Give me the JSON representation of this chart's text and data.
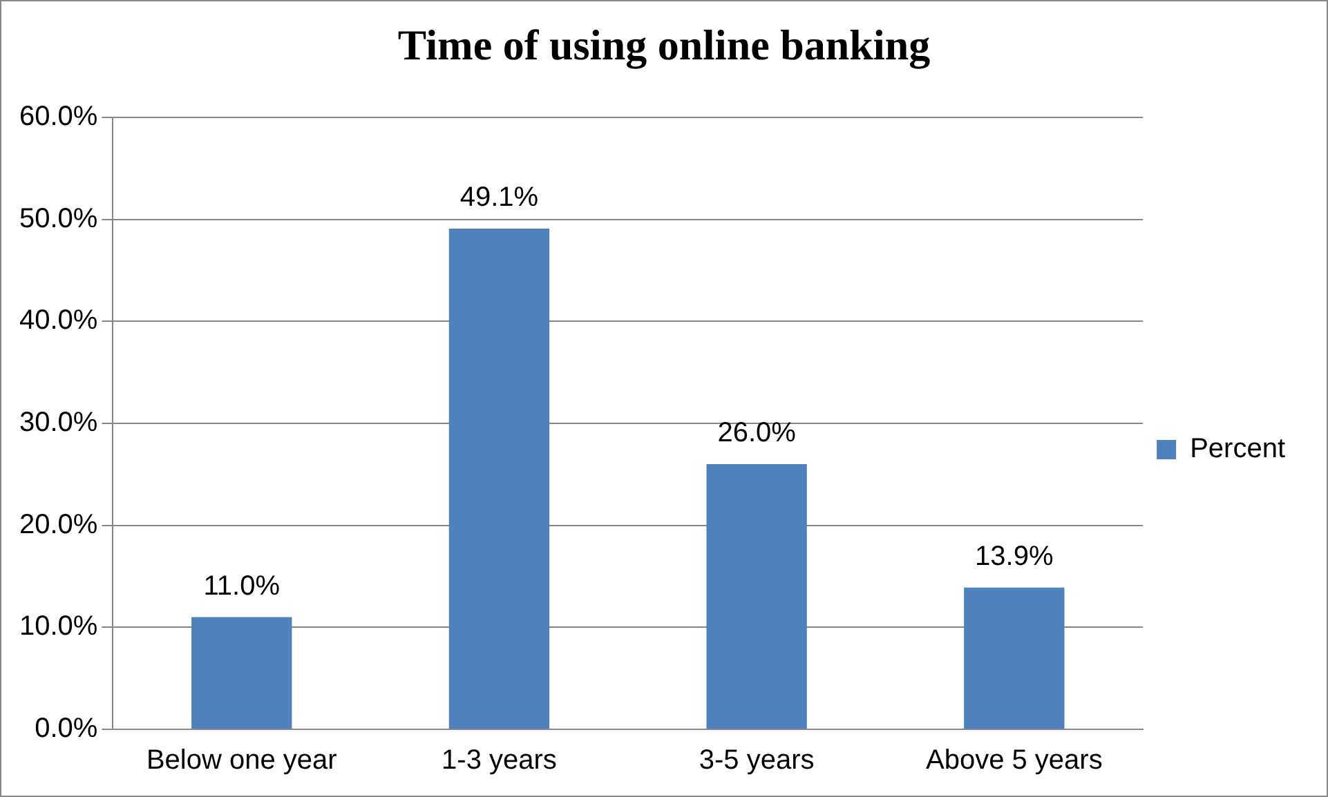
{
  "chart_data": {
    "type": "bar",
    "title": "Time of using online banking",
    "categories": [
      "Below one year",
      "1-3 years",
      "3-5 years",
      "Above 5 years"
    ],
    "series": [
      {
        "name": "Percent",
        "color": "#4f81bd",
        "values": [
          11.0,
          49.1,
          26.0,
          13.9
        ],
        "value_labels": [
          "11.0%",
          "49.1%",
          "26.0%",
          "13.9%"
        ]
      }
    ],
    "ylim": [
      0,
      60
    ],
    "yticks": [
      {
        "value": 0,
        "label": "0.0%"
      },
      {
        "value": 10,
        "label": "10.0%"
      },
      {
        "value": 20,
        "label": "20.0%"
      },
      {
        "value": 30,
        "label": "30.0%"
      },
      {
        "value": 40,
        "label": "40.0%"
      },
      {
        "value": 50,
        "label": "50.0%"
      },
      {
        "value": 60,
        "label": "60.0%"
      }
    ],
    "grid": "y",
    "legend": "right"
  }
}
